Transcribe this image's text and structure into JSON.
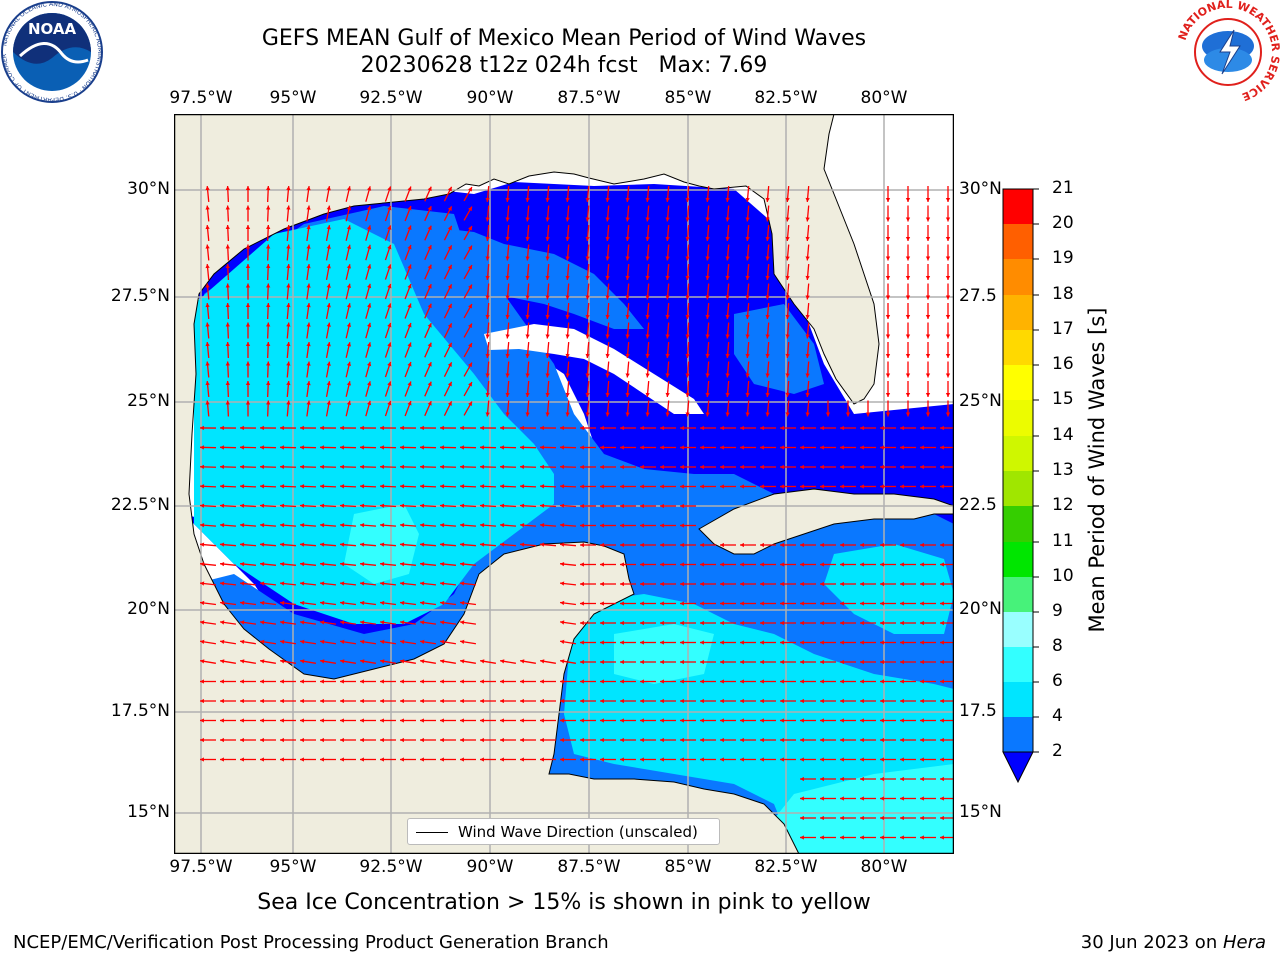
{
  "title": {
    "line1": "GEFS MEAN Gulf of Mexico Mean Period of Wind Waves",
    "line2": "20230628 t12z 024h fcst   Max: 7.69"
  },
  "map": {
    "lon_labels": [
      "97.5°W",
      "95°W",
      "92.5°W",
      "90°W",
      "87.5°W",
      "85°W",
      "82.5°W",
      "80°W"
    ],
    "lat_labels_left": [
      "30°N",
      "27.5°N",
      "25°N",
      "22.5°N",
      "20°N",
      "17.5°N",
      "15°N"
    ],
    "lat_labels_right": [
      "30°N",
      "27.5",
      "25°N",
      "22.5",
      "20°N",
      "17.5",
      "15°N"
    ],
    "legend_label": "Wind Wave Direction (unscaled)",
    "land_color": "#efedde",
    "arrow_color": "#ff0000",
    "grid_color": "#b0b0b0"
  },
  "colorbar": {
    "label": "Mean Period of Wind Waves [s]",
    "ticks": [
      "2",
      "4",
      "6",
      "8",
      "9",
      "10",
      "11",
      "12",
      "13",
      "14",
      "15",
      "16",
      "17",
      "18",
      "19",
      "20",
      "21"
    ],
    "colors": [
      "#0a78ff",
      "#00e5ff",
      "#33ffff",
      "#99ffff",
      "#47f27a",
      "#00e600",
      "#35ce00",
      "#a0e600",
      "#cff700",
      "#ecfc00",
      "#ffff00",
      "#ffd900",
      "#ffb300",
      "#ff8c00",
      "#ff5f00",
      "#ff3000",
      "#ff0000"
    ],
    "extend_color": "#0000ff"
  },
  "subcaption": "Sea Ice Concentration > 15% is shown in pink to yellow",
  "footer": {
    "left": "NCEP/EMC/Verification Post Processing Product Generation Branch",
    "right_date": "30 Jun 2023 on ",
    "right_host": "Hera"
  },
  "logos": {
    "noaa_text": "NOAA",
    "noaa_ring": "NATIONAL OCEANIC AND ATMOSPHERIC ADMINISTRATION · U.S. DEPARTMENT OF COMMERCE",
    "nws_ring": "NATIONAL WEATHER SERVICE"
  }
}
